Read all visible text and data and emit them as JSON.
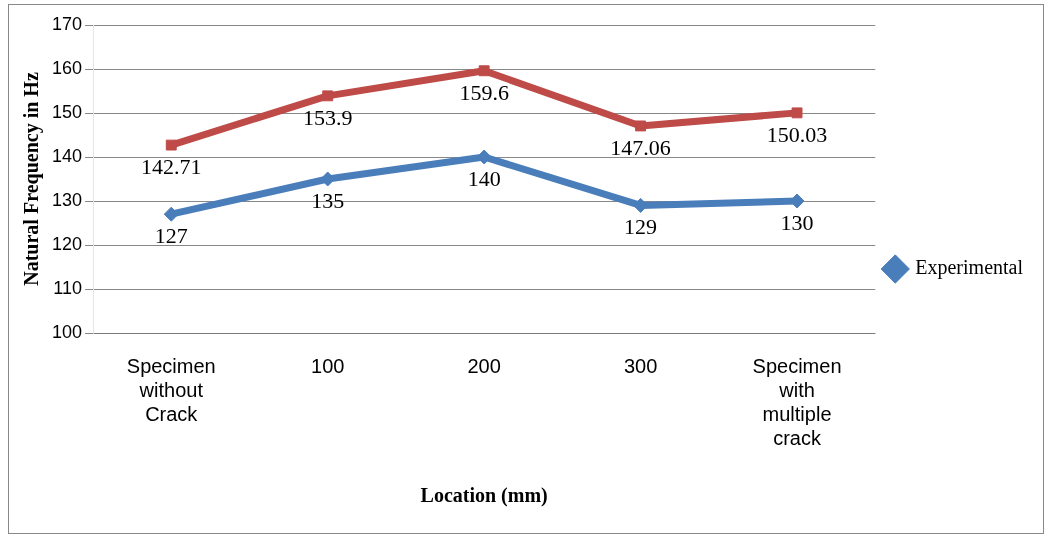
{
  "chart_data": {
    "type": "line",
    "xlabel": "Location (mm)",
    "ylabel": "Natural Frequency in Hz",
    "categories": [
      "Specimen without Crack",
      "100",
      "200",
      "300",
      "Specimen with multiple crack"
    ],
    "series": [
      {
        "name": "Experimental",
        "color": "#4a7ebb",
        "marker": "diamond",
        "values": [
          127,
          135,
          140,
          129,
          130
        ]
      },
      {
        "color": "#be4b48",
        "marker": "square",
        "values": [
          142.71,
          153.9,
          159.6,
          147.06,
          150.03
        ]
      }
    ],
    "ylim": [
      100,
      170
    ],
    "yticks": [
      100,
      110,
      120,
      130,
      140,
      150,
      160,
      170
    ],
    "grid": "y",
    "legend": "right",
    "data_labels": true
  }
}
